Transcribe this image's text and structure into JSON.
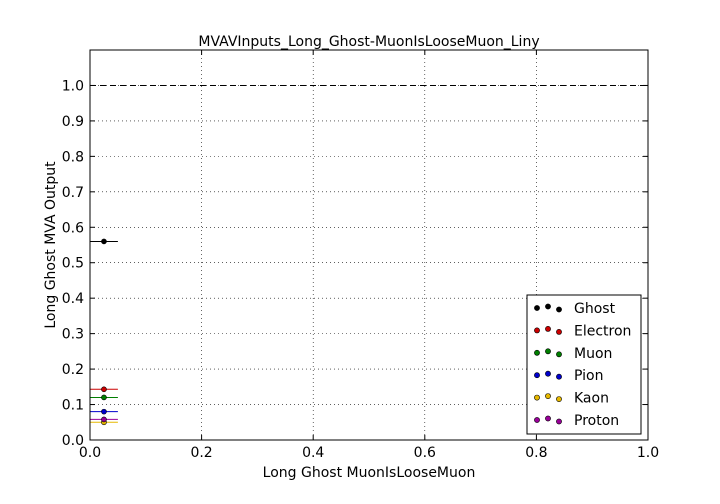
{
  "chart_data": {
    "type": "scatter",
    "title": "MVAVInputs_Long_Ghost-MuonIsLooseMuon_Liny",
    "xlabel": "Long Ghost MuonIsLooseMuon",
    "ylabel": "Long Ghost MVA Output",
    "xlim": [
      0.0,
      1.0
    ],
    "ylim": [
      0.0,
      1.1
    ],
    "x_ticks": [
      "0.0",
      "0.2",
      "0.4",
      "0.6",
      "0.8",
      "1.0"
    ],
    "y_ticks": [
      "0.0",
      "0.1",
      "0.2",
      "0.3",
      "0.4",
      "0.5",
      "0.6",
      "0.7",
      "0.8",
      "0.9",
      "1.0"
    ],
    "grid": true,
    "reference_line_y": 1.0,
    "legend_position": "lower-right",
    "series": [
      {
        "name": "Ghost",
        "color": "#000000",
        "points": [
          {
            "x": 0.025,
            "y": 0.56,
            "xerr": 0.025
          }
        ]
      },
      {
        "name": "Electron",
        "color": "#cc0000",
        "points": [
          {
            "x": 0.025,
            "y": 0.143,
            "xerr": 0.025
          }
        ]
      },
      {
        "name": "Muon",
        "color": "#007f00",
        "points": [
          {
            "x": 0.025,
            "y": 0.12,
            "xerr": 0.025
          }
        ]
      },
      {
        "name": "Pion",
        "color": "#0000cc",
        "points": [
          {
            "x": 0.025,
            "y": 0.08,
            "xerr": 0.025
          }
        ]
      },
      {
        "name": "Kaon",
        "color": "#e6b800",
        "points": [
          {
            "x": 0.025,
            "y": 0.05,
            "xerr": 0.025
          }
        ]
      },
      {
        "name": "Proton",
        "color": "#990099",
        "points": [
          {
            "x": 0.025,
            "y": 0.058,
            "xerr": 0.025
          }
        ]
      }
    ]
  }
}
